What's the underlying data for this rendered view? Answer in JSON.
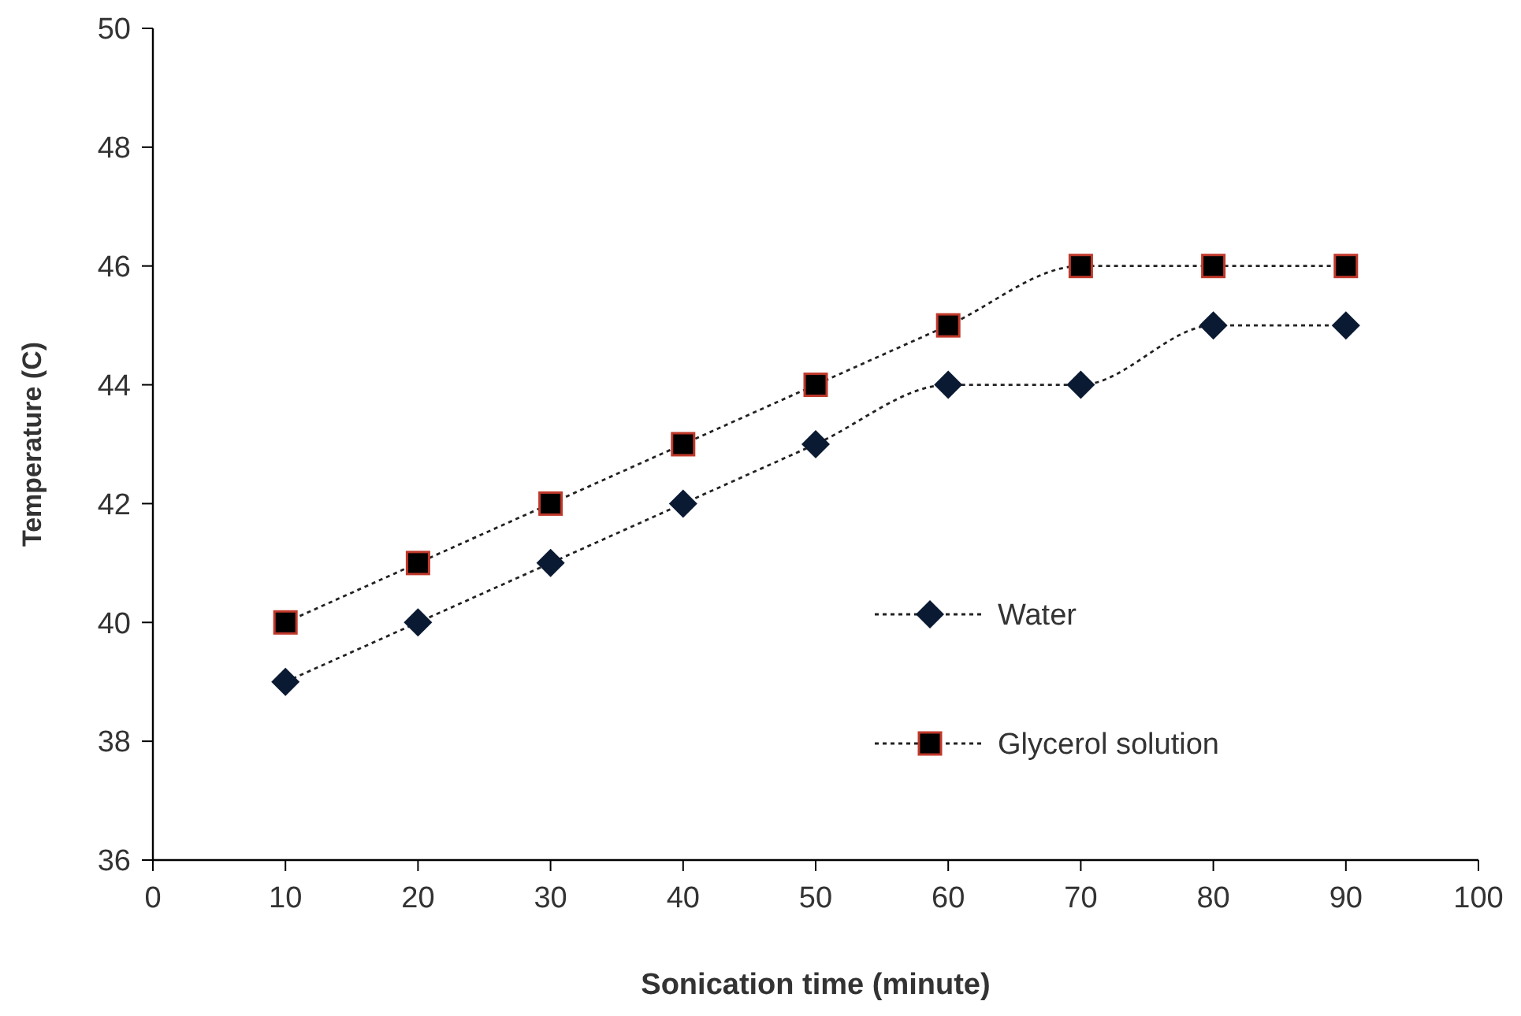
{
  "chart_data": {
    "type": "line",
    "xlabel": "Sonication time (minute)",
    "ylabel": "Temperature (C)",
    "x": [
      10,
      20,
      30,
      40,
      50,
      60,
      70,
      80,
      90
    ],
    "series": [
      {
        "name": "Water",
        "color": "#0b1a33",
        "marker": "diamond",
        "values": [
          39,
          40,
          41,
          42,
          43,
          44,
          44,
          45,
          45
        ]
      },
      {
        "name": "Glycerol solution",
        "color": "#000000",
        "marker": "square",
        "values": [
          40,
          41,
          42,
          43,
          44,
          45,
          46,
          46,
          46
        ]
      }
    ],
    "xlim": [
      0,
      100
    ],
    "xticks": [
      0,
      10,
      20,
      30,
      40,
      50,
      60,
      70,
      80,
      90,
      100
    ],
    "ylim": [
      36,
      50
    ],
    "yticks": [
      36,
      38,
      40,
      42,
      44,
      46,
      48,
      50
    ],
    "grid": false,
    "legend": "right",
    "line_style": "dotted"
  }
}
